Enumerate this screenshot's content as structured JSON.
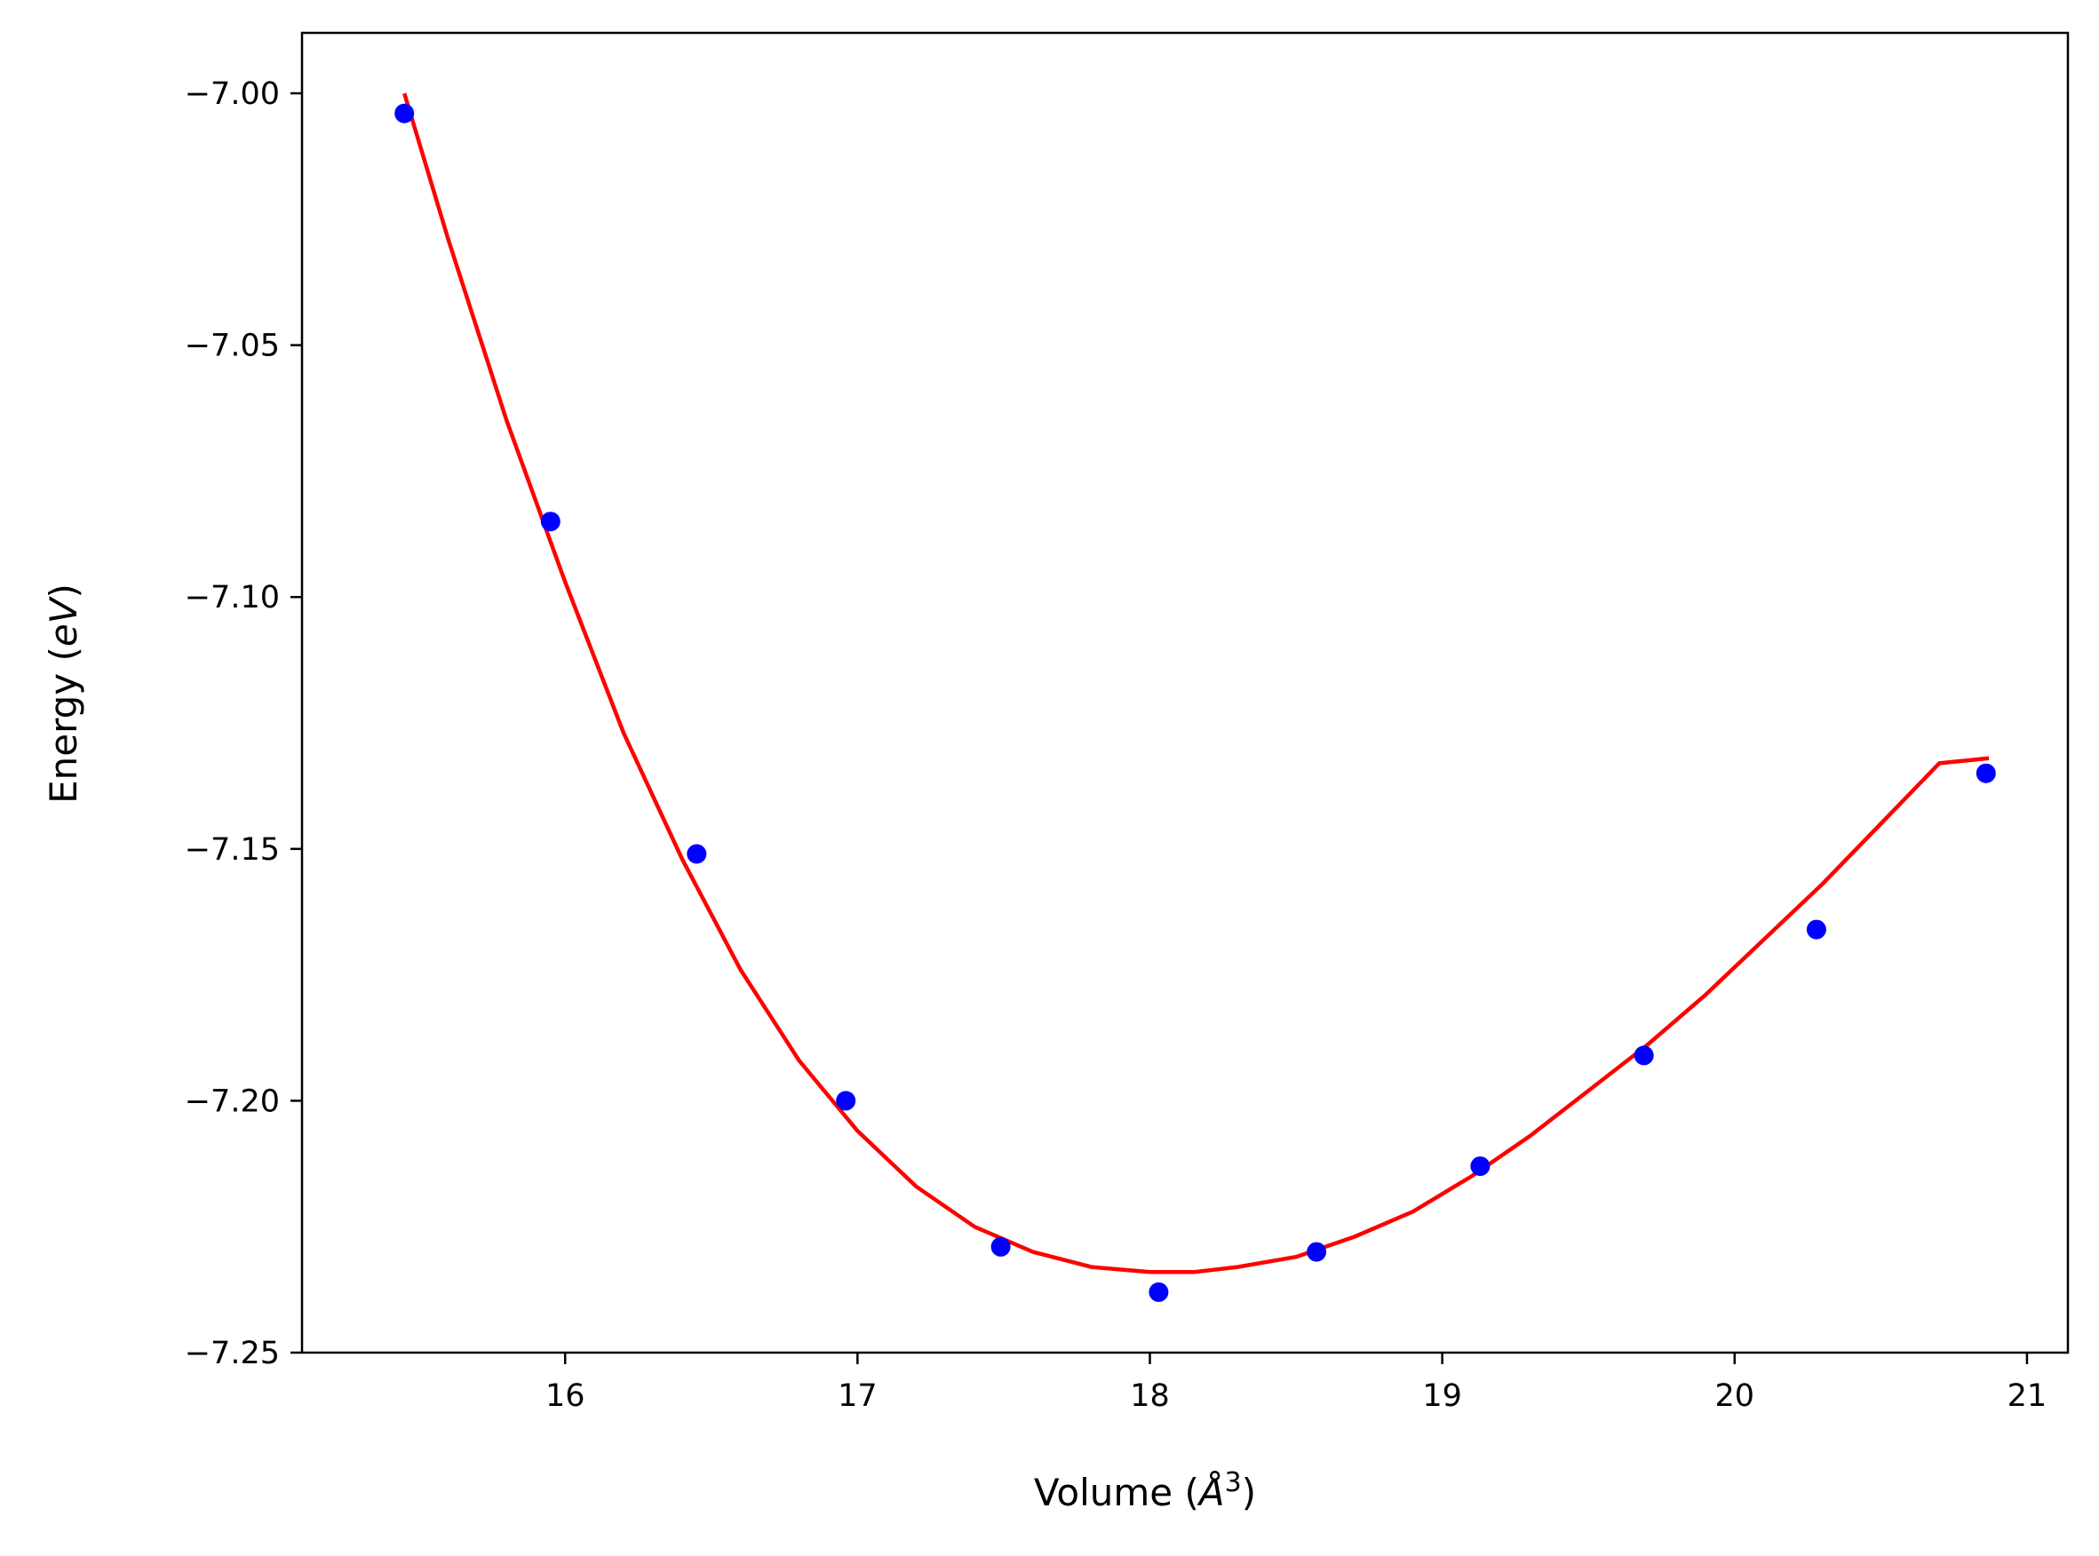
{
  "chart_data": {
    "type": "scatter",
    "title": "",
    "xlabel": "Volume (",
    "xlabel_math": "Å",
    "xlabel_sup": "3",
    "xlabel_end": ")",
    "ylabel": "Energy (",
    "ylabel_math": "eV",
    "ylabel_end": ")",
    "xlim": [
      15.1,
      21.14
    ],
    "ylim": [
      -7.25,
      -6.988
    ],
    "xticks": [
      16,
      17,
      18,
      19,
      20,
      21
    ],
    "xtick_labels": [
      "16",
      "17",
      "18",
      "19",
      "20",
      "21"
    ],
    "yticks": [
      -7.0,
      -7.05,
      -7.1,
      -7.15,
      -7.2,
      -7.25
    ],
    "ytick_labels": [
      "−7.00",
      "−7.05",
      "−7.10",
      "−7.15",
      "−7.20",
      "−7.25"
    ],
    "grid": false,
    "legend": false,
    "series": [
      {
        "kind": "points",
        "color": "#0000ff",
        "x": [
          15.45,
          15.95,
          16.45,
          16.96,
          17.49,
          18.03,
          18.57,
          19.13,
          19.69,
          20.28,
          20.86
        ],
        "y": [
          -7.004,
          -7.085,
          -7.151,
          -7.2,
          -7.229,
          -7.238,
          -7.23,
          -7.213,
          -7.191,
          -7.166,
          -7.135
        ]
      },
      {
        "kind": "fit-line",
        "color": "#ff0000",
        "x": [
          15.45,
          15.6,
          15.8,
          16.0,
          16.2,
          16.4,
          16.6,
          16.8,
          17.0,
          17.2,
          17.4,
          17.6,
          17.8,
          18.0,
          18.15,
          18.3,
          18.5,
          18.7,
          18.9,
          19.1,
          19.3,
          19.5,
          19.7,
          19.9,
          20.1,
          20.3,
          20.5,
          20.7,
          20.87
        ],
        "y": [
          -7.0,
          -7.029,
          -7.065,
          -7.097,
          -7.127,
          -7.152,
          -7.174,
          -7.192,
          -7.206,
          -7.217,
          -7.225,
          -7.23,
          -7.233,
          -7.234,
          -7.234,
          -7.233,
          -7.231,
          -7.227,
          -7.222,
          -7.215,
          -7.207,
          -7.198,
          -7.189,
          -7.179,
          -7.168,
          -7.157,
          -7.145,
          -7.133,
          -7.132
        ]
      }
    ]
  }
}
